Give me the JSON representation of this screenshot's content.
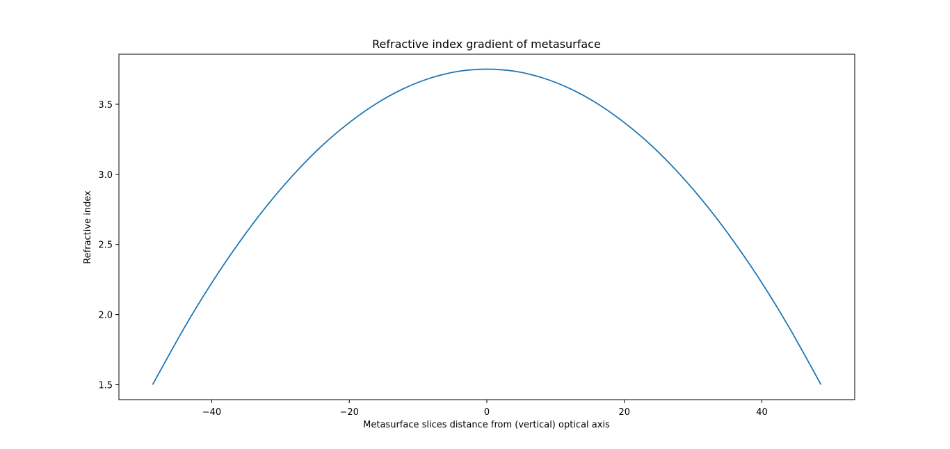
{
  "chart_data": {
    "type": "line",
    "title": "Refractive index gradient of metasurface",
    "xlabel": "Metasurface slices distance from (vertical) optical axis",
    "ylabel": "Refractive index",
    "xlim": [
      -53.5,
      53.5
    ],
    "ylim": [
      1.393,
      3.857
    ],
    "xticks": [
      -40,
      -20,
      0,
      20,
      40
    ],
    "xtick_labels": [
      "−40",
      "−20",
      "0",
      "20",
      "40"
    ],
    "yticks": [
      1.5,
      2.0,
      2.5,
      3.0,
      3.5
    ],
    "ytick_labels": [
      "1.5",
      "2.0",
      "2.5",
      "3.0",
      "3.5"
    ],
    "grid": false,
    "legend": "none",
    "colors": {
      "line": "#1f77b4",
      "axes": "#000000"
    },
    "series": [
      {
        "x": [
          -48.6,
          -44,
          -40,
          -36,
          -32,
          -28,
          -24,
          -20,
          -16,
          -12,
          -8,
          -4,
          0,
          4,
          8,
          12,
          16,
          20,
          24,
          28,
          32,
          36,
          40,
          44,
          48.6
        ],
        "y": [
          1.5,
          1.905,
          2.226,
          2.515,
          2.775,
          3.004,
          3.203,
          3.369,
          3.507,
          3.614,
          3.69,
          3.736,
          3.75,
          3.736,
          3.69,
          3.614,
          3.507,
          3.369,
          3.203,
          3.004,
          2.775,
          2.515,
          2.226,
          1.905,
          1.5
        ]
      }
    ]
  }
}
